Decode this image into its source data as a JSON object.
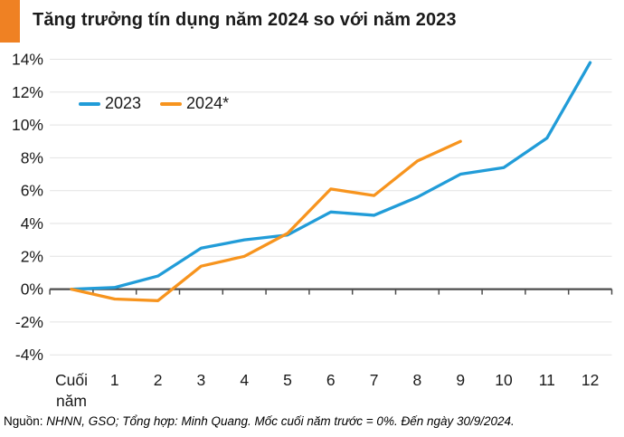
{
  "header": {
    "title": "Tăng trưởng tín dụng năm 2024 so với năm 2023"
  },
  "colors": {
    "accent": "#EF8123",
    "blue": "#219CD8",
    "orange": "#F7941E",
    "grid": "#E2E2E2",
    "axis": "#4D4D4D",
    "text": "#1A1A1A"
  },
  "legend": [
    {
      "label": "2023",
      "color_key": "blue"
    },
    {
      "label": "2024*",
      "color_key": "orange"
    }
  ],
  "chart_data": {
    "type": "line",
    "title": "Tăng trưởng tín dụng năm 2024 so với năm 2023",
    "categories": [
      "Cuối năm",
      "1",
      "2",
      "3",
      "4",
      "5",
      "6",
      "7",
      "8",
      "9",
      "10",
      "11",
      "12"
    ],
    "series": [
      {
        "name": "2023",
        "color_key": "blue",
        "values": [
          0,
          0.1,
          0.8,
          2.5,
          3.0,
          3.3,
          4.7,
          4.5,
          5.6,
          7.0,
          7.4,
          9.2,
          13.8
        ]
      },
      {
        "name": "2024*",
        "color_key": "orange",
        "values": [
          0,
          -0.6,
          -0.7,
          1.4,
          2.0,
          3.4,
          6.1,
          5.7,
          7.8,
          9.0,
          null,
          null,
          null
        ]
      }
    ],
    "ylim": [
      -4,
      14
    ],
    "ytick_step": 2,
    "ytick_suffix": "%",
    "xlabel": "",
    "ylabel": "",
    "grid": true,
    "baseline": 0,
    "legend_position": "top-left-inside"
  },
  "footer": {
    "source_prefix": "Nguồn:",
    "source_text": " NHNN, GSO; Tổng hợp: Minh Quang. Mốc cuối năm trước = 0%. Đến ngày 30/9/2024."
  }
}
